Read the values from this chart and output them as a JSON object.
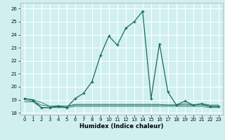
{
  "title": "",
  "xlabel": "Humidex (Indice chaleur)",
  "ylabel": "",
  "background_color": "#d0f0f0",
  "grid_color": "#ffffff",
  "line_color": "#1a6b5a",
  "xlim": [
    -0.5,
    23.5
  ],
  "ylim": [
    17.85,
    26.45
  ],
  "yticks": [
    18,
    19,
    20,
    21,
    22,
    23,
    24,
    25,
    26
  ],
  "xticks": [
    0,
    1,
    2,
    3,
    4,
    5,
    6,
    7,
    8,
    9,
    10,
    11,
    12,
    13,
    14,
    15,
    16,
    17,
    18,
    19,
    20,
    21,
    22,
    23
  ],
  "main_series": [
    [
      0,
      19.1
    ],
    [
      1,
      19.0
    ],
    [
      2,
      18.4
    ],
    [
      3,
      18.4
    ],
    [
      4,
      18.5
    ],
    [
      5,
      18.4
    ],
    [
      6,
      19.1
    ],
    [
      7,
      19.5
    ],
    [
      8,
      20.4
    ],
    [
      9,
      22.4
    ],
    [
      10,
      23.9
    ],
    [
      11,
      23.2
    ],
    [
      12,
      24.5
    ],
    [
      13,
      25.0
    ],
    [
      14,
      25.8
    ],
    [
      15,
      19.1
    ],
    [
      16,
      23.3
    ],
    [
      17,
      19.6
    ],
    [
      18,
      18.6
    ],
    [
      19,
      18.9
    ],
    [
      20,
      18.6
    ],
    [
      21,
      18.7
    ],
    [
      22,
      18.5
    ],
    [
      23,
      18.5
    ]
  ],
  "flat1": [
    [
      0,
      19.1
    ],
    [
      1,
      19.0
    ],
    [
      2,
      18.8
    ],
    [
      3,
      18.5
    ],
    [
      4,
      18.5
    ],
    [
      5,
      18.5
    ],
    [
      6,
      18.6
    ],
    [
      7,
      18.6
    ],
    [
      8,
      18.6
    ],
    [
      9,
      18.6
    ],
    [
      10,
      18.6
    ],
    [
      11,
      18.6
    ],
    [
      12,
      18.6
    ],
    [
      13,
      18.6
    ],
    [
      14,
      18.6
    ],
    [
      15,
      18.6
    ],
    [
      16,
      18.6
    ],
    [
      17,
      18.6
    ],
    [
      18,
      18.6
    ],
    [
      19,
      18.7
    ],
    [
      20,
      18.6
    ],
    [
      21,
      18.7
    ],
    [
      22,
      18.6
    ],
    [
      23,
      18.6
    ]
  ],
  "flat2": [
    [
      0,
      18.85
    ],
    [
      1,
      18.85
    ],
    [
      2,
      18.4
    ],
    [
      3,
      18.4
    ],
    [
      4,
      18.4
    ],
    [
      5,
      18.4
    ],
    [
      6,
      18.5
    ],
    [
      7,
      18.5
    ],
    [
      8,
      18.5
    ],
    [
      9,
      18.5
    ],
    [
      10,
      18.5
    ],
    [
      11,
      18.5
    ],
    [
      12,
      18.5
    ],
    [
      13,
      18.5
    ],
    [
      14,
      18.5
    ],
    [
      15,
      18.5
    ],
    [
      16,
      18.5
    ],
    [
      17,
      18.5
    ],
    [
      18,
      18.5
    ],
    [
      19,
      18.5
    ],
    [
      20,
      18.5
    ],
    [
      21,
      18.5
    ],
    [
      22,
      18.4
    ],
    [
      23,
      18.4
    ]
  ],
  "flat3": [
    [
      0,
      19.0
    ],
    [
      1,
      18.9
    ],
    [
      2,
      18.6
    ],
    [
      3,
      18.5
    ],
    [
      4,
      18.55
    ],
    [
      5,
      18.5
    ],
    [
      6,
      18.65
    ],
    [
      7,
      18.65
    ],
    [
      8,
      18.65
    ],
    [
      9,
      18.65
    ],
    [
      10,
      18.65
    ],
    [
      11,
      18.65
    ],
    [
      12,
      18.65
    ],
    [
      13,
      18.65
    ],
    [
      14,
      18.65
    ],
    [
      15,
      18.65
    ],
    [
      16,
      18.65
    ],
    [
      17,
      18.6
    ],
    [
      18,
      18.6
    ],
    [
      19,
      18.6
    ],
    [
      20,
      18.6
    ],
    [
      21,
      18.6
    ],
    [
      22,
      18.5
    ],
    [
      23,
      18.5
    ]
  ],
  "xlabel_fontsize": 6,
  "tick_fontsize": 5,
  "linewidth_main": 0.9,
  "linewidth_flat": 0.6,
  "marker_size": 3.5
}
